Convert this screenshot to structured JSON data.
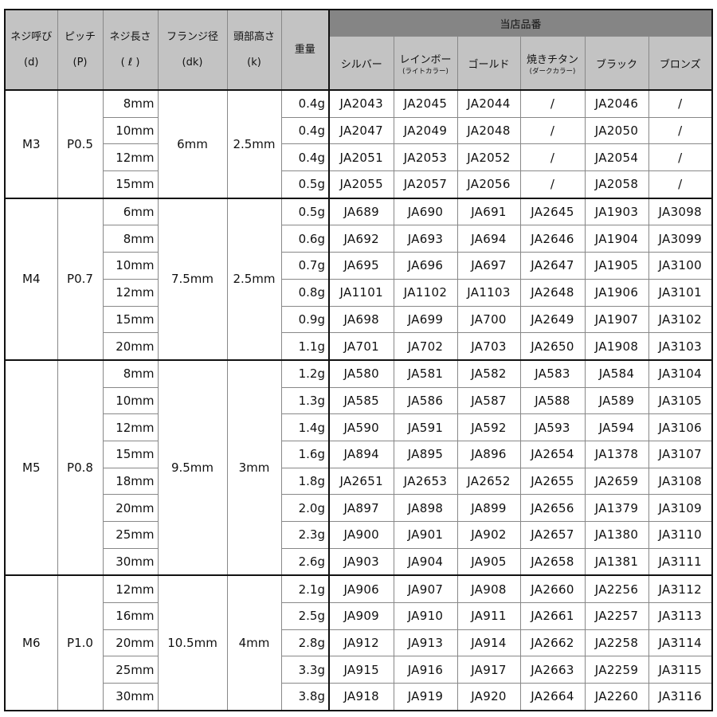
{
  "header": {
    "columns": [
      {
        "label": "ネジ呼び",
        "sub": "(d)"
      },
      {
        "label": "ピッチ",
        "sub": "(P)"
      },
      {
        "label": "ネジ長さ",
        "sub": "( ℓ )"
      },
      {
        "label": "フランジ径",
        "sub": "(dk)"
      },
      {
        "label": "頭部高さ",
        "sub": "(k)"
      }
    ],
    "weight": "重量",
    "group": "当店品番",
    "colors": [
      {
        "label": "シルバー",
        "note": ""
      },
      {
        "label": "レインボー",
        "note": "(ライトカラー)"
      },
      {
        "label": "ゴールド",
        "note": ""
      },
      {
        "label": "焼きチタン",
        "note": "(ダークカラー)"
      },
      {
        "label": "ブラック",
        "note": ""
      },
      {
        "label": "ブロンズ",
        "note": ""
      }
    ]
  },
  "colors": {
    "header_bg": "#c3c3c3",
    "group_header_bg": "#858585",
    "border": "#111111"
  },
  "groups": [
    {
      "size": "M3",
      "pitch": "P0.5",
      "dk": "6mm",
      "k": "2.5mm",
      "rows": [
        {
          "length": "8mm",
          "weight": "0.4g",
          "codes": [
            "JA2043",
            "JA2045",
            "JA2044",
            "/",
            "JA2046",
            "/"
          ]
        },
        {
          "length": "10mm",
          "weight": "0.4g",
          "codes": [
            "JA2047",
            "JA2049",
            "JA2048",
            "/",
            "JA2050",
            "/"
          ]
        },
        {
          "length": "12mm",
          "weight": "0.4g",
          "codes": [
            "JA2051",
            "JA2053",
            "JA2052",
            "/",
            "JA2054",
            "/"
          ]
        },
        {
          "length": "15mm",
          "weight": "0.5g",
          "codes": [
            "JA2055",
            "JA2057",
            "JA2056",
            "/",
            "JA2058",
            "/"
          ]
        }
      ]
    },
    {
      "size": "M4",
      "pitch": "P0.7",
      "dk": "7.5mm",
      "k": "2.5mm",
      "rows": [
        {
          "length": "6mm",
          "weight": "0.5g",
          "codes": [
            "JA689",
            "JA690",
            "JA691",
            "JA2645",
            "JA1903",
            "JA3098"
          ]
        },
        {
          "length": "8mm",
          "weight": "0.6g",
          "codes": [
            "JA692",
            "JA693",
            "JA694",
            "JA2646",
            "JA1904",
            "JA3099"
          ]
        },
        {
          "length": "10mm",
          "weight": "0.7g",
          "codes": [
            "JA695",
            "JA696",
            "JA697",
            "JA2647",
            "JA1905",
            "JA3100"
          ]
        },
        {
          "length": "12mm",
          "weight": "0.8g",
          "codes": [
            "JA1101",
            "JA1102",
            "JA1103",
            "JA2648",
            "JA1906",
            "JA3101"
          ]
        },
        {
          "length": "15mm",
          "weight": "0.9g",
          "codes": [
            "JA698",
            "JA699",
            "JA700",
            "JA2649",
            "JA1907",
            "JA3102"
          ]
        },
        {
          "length": "20mm",
          "weight": "1.1g",
          "codes": [
            "JA701",
            "JA702",
            "JA703",
            "JA2650",
            "JA1908",
            "JA3103"
          ]
        }
      ]
    },
    {
      "size": "M5",
      "pitch": "P0.8",
      "dk": "9.5mm",
      "k": "3mm",
      "rows": [
        {
          "length": "8mm",
          "weight": "1.2g",
          "codes": [
            "JA580",
            "JA581",
            "JA582",
            "JA583",
            "JA584",
            "JA3104"
          ]
        },
        {
          "length": "10mm",
          "weight": "1.3g",
          "codes": [
            "JA585",
            "JA586",
            "JA587",
            "JA588",
            "JA589",
            "JA3105"
          ]
        },
        {
          "length": "12mm",
          "weight": "1.4g",
          "codes": [
            "JA590",
            "JA591",
            "JA592",
            "JA593",
            "JA594",
            "JA3106"
          ]
        },
        {
          "length": "15mm",
          "weight": "1.6g",
          "codes": [
            "JA894",
            "JA895",
            "JA896",
            "JA2654",
            "JA1378",
            "JA3107"
          ]
        },
        {
          "length": "18mm",
          "weight": "1.8g",
          "codes": [
            "JA2651",
            "JA2653",
            "JA2652",
            "JA2655",
            "JA2659",
            "JA3108"
          ]
        },
        {
          "length": "20mm",
          "weight": "2.0g",
          "codes": [
            "JA897",
            "JA898",
            "JA899",
            "JA2656",
            "JA1379",
            "JA3109"
          ]
        },
        {
          "length": "25mm",
          "weight": "2.3g",
          "codes": [
            "JA900",
            "JA901",
            "JA902",
            "JA2657",
            "JA1380",
            "JA3110"
          ]
        },
        {
          "length": "30mm",
          "weight": "2.6g",
          "codes": [
            "JA903",
            "JA904",
            "JA905",
            "JA2658",
            "JA1381",
            "JA3111"
          ]
        }
      ]
    },
    {
      "size": "M6",
      "pitch": "P1.0",
      "dk": "10.5mm",
      "k": "4mm",
      "rows": [
        {
          "length": "12mm",
          "weight": "2.1g",
          "codes": [
            "JA906",
            "JA907",
            "JA908",
            "JA2660",
            "JA2256",
            "JA3112"
          ]
        },
        {
          "length": "16mm",
          "weight": "2.5g",
          "codes": [
            "JA909",
            "JA910",
            "JA911",
            "JA2661",
            "JA2257",
            "JA3113"
          ]
        },
        {
          "length": "20mm",
          "weight": "2.8g",
          "codes": [
            "JA912",
            "JA913",
            "JA914",
            "JA2662",
            "JA2258",
            "JA3114"
          ]
        },
        {
          "length": "25mm",
          "weight": "3.3g",
          "codes": [
            "JA915",
            "JA916",
            "JA917",
            "JA2663",
            "JA2259",
            "JA3115"
          ]
        },
        {
          "length": "30mm",
          "weight": "3.8g",
          "codes": [
            "JA918",
            "JA919",
            "JA920",
            "JA2664",
            "JA2260",
            "JA3116"
          ]
        }
      ]
    }
  ]
}
